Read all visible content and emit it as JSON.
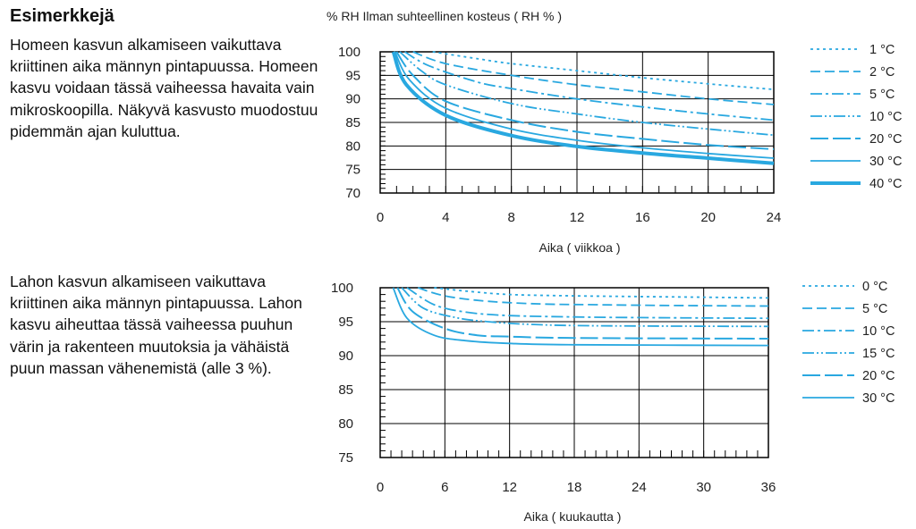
{
  "text": {
    "heading": "Esimerkkejä",
    "para1": "Homeen kasvun alkamiseen vaikuttava kriittinen aika männyn pintapuussa. Homeen kasvu voidaan tässä vaiheessa havaita vain mikroskoopilla. Näkyvä kasvusto muodostuu pidemmän ajan kuluttua.",
    "para2": "Lahon kasvun alkamiseen vaikuttava kriittinen aika männyn pintapuussa. Lahon kasvu aiheuttaa tässä vaiheessa puuhun värin ja rakenteen muutoksia ja vähäistä puun massan vähenemistä (alle 3 %)."
  },
  "chart_data": [
    {
      "type": "line",
      "title": "% RH  Ilman suhteellinen kosteus ( RH % )",
      "xlabel": "Aika ( viikkoa )",
      "ylabel": "% RH",
      "xlim": [
        0,
        24
      ],
      "ylim": [
        70,
        100
      ],
      "xticks": [
        0,
        4,
        8,
        12,
        16,
        20,
        24
      ],
      "yticks": [
        70,
        75,
        80,
        85,
        90,
        95,
        100
      ],
      "color": "#29a8e0",
      "series": [
        {
          "name": "1 °C",
          "style": "dot",
          "points": [
            [
              3.2,
              100
            ],
            [
              6,
              98.5
            ],
            [
              8,
              97.5
            ],
            [
              12,
              96
            ],
            [
              16,
              94.5
            ],
            [
              20,
              93.2
            ],
            [
              24,
              92
            ]
          ]
        },
        {
          "name": "2 °C",
          "style": "dash-short",
          "points": [
            [
              2.0,
              100
            ],
            [
              4,
              97.5
            ],
            [
              8,
              95
            ],
            [
              12,
              93
            ],
            [
              16,
              91.5
            ],
            [
              20,
              90
            ],
            [
              24,
              88.8
            ]
          ]
        },
        {
          "name": "5 °C",
          "style": "dash-dot",
          "points": [
            [
              1.5,
              100
            ],
            [
              3,
              97
            ],
            [
              6,
              93.5
            ],
            [
              8,
              92.2
            ],
            [
              12,
              90
            ],
            [
              16,
              88.3
            ],
            [
              20,
              86.8
            ],
            [
              24,
              85.5
            ]
          ]
        },
        {
          "name": "10 °C",
          "style": "dash-dot-dot",
          "points": [
            [
              1.2,
              100
            ],
            [
              2.5,
              96
            ],
            [
              4,
              93
            ],
            [
              8,
              89
            ],
            [
              12,
              86.8
            ],
            [
              16,
              85
            ],
            [
              20,
              83.6
            ],
            [
              24,
              82.3
            ]
          ]
        },
        {
          "name": "20 °C",
          "style": "dash-long",
          "points": [
            [
              1.0,
              100
            ],
            [
              2,
              95
            ],
            [
              4,
              89.5
            ],
            [
              8,
              85.5
            ],
            [
              12,
              83
            ],
            [
              16,
              81.5
            ],
            [
              20,
              80.2
            ],
            [
              24,
              79.3
            ]
          ]
        },
        {
          "name": "30 °C",
          "style": "solid",
          "points": [
            [
              0.9,
              100
            ],
            [
              1.8,
              94
            ],
            [
              4,
              88
            ],
            [
              8,
              83.6
            ],
            [
              12,
              81.2
            ],
            [
              16,
              79.6
            ],
            [
              20,
              78.4
            ],
            [
              24,
              77.4
            ]
          ]
        },
        {
          "name": "40 °C",
          "style": "solid-thick",
          "points": [
            [
              0.8,
              100
            ],
            [
              1.6,
              93
            ],
            [
              4,
              86.5
            ],
            [
              8,
              82.2
            ],
            [
              12,
              79.9
            ],
            [
              16,
              78.5
            ],
            [
              20,
              77.4
            ],
            [
              24,
              76.3
            ]
          ]
        }
      ]
    },
    {
      "type": "line",
      "xlabel": "Aika ( kuukautta )",
      "xlim": [
        0,
        36
      ],
      "ylim": [
        75,
        100
      ],
      "xticks": [
        0,
        6,
        12,
        18,
        24,
        30,
        36
      ],
      "yticks": [
        75,
        80,
        85,
        90,
        95,
        100
      ],
      "color": "#29a8e0",
      "series": [
        {
          "name": "0 °C",
          "style": "dot",
          "points": [
            [
              5,
              100
            ],
            [
              8,
              99.5
            ],
            [
              12,
              99
            ],
            [
              18,
              98.8
            ],
            [
              24,
              98.7
            ],
            [
              30,
              98.6
            ],
            [
              36,
              98.5
            ]
          ]
        },
        {
          "name": "5 °C",
          "style": "dash-short",
          "points": [
            [
              3.5,
              100
            ],
            [
              6,
              98.8
            ],
            [
              10,
              98
            ],
            [
              15,
              97.6
            ],
            [
              20,
              97.5
            ],
            [
              26,
              97.4
            ],
            [
              36,
              97.3
            ]
          ]
        },
        {
          "name": "10 °C",
          "style": "dash-dot",
          "points": [
            [
              2.5,
              100
            ],
            [
              5,
              97.5
            ],
            [
              8,
              96.4
            ],
            [
              12,
              95.9
            ],
            [
              18,
              95.7
            ],
            [
              24,
              95.6
            ],
            [
              36,
              95.5
            ]
          ]
        },
        {
          "name": "15 °C",
          "style": "dash-dot-dot",
          "points": [
            [
              2,
              100
            ],
            [
              4,
              97
            ],
            [
              7,
              95.6
            ],
            [
              10,
              95
            ],
            [
              14,
              94.6
            ],
            [
              20,
              94.4
            ],
            [
              36,
              94.3
            ]
          ]
        },
        {
          "name": "20 °C",
          "style": "dash-long",
          "points": [
            [
              1.6,
              100
            ],
            [
              3,
              96.5
            ],
            [
              6,
              94
            ],
            [
              9,
              93
            ],
            [
              12,
              92.8
            ],
            [
              18,
              92.6
            ],
            [
              36,
              92.5
            ]
          ]
        },
        {
          "name": "30 °C",
          "style": "solid",
          "points": [
            [
              1.2,
              100
            ],
            [
              2.5,
              95.5
            ],
            [
              5,
              93
            ],
            [
              8,
              92.2
            ],
            [
              12,
              91.8
            ],
            [
              18,
              91.6
            ],
            [
              36,
              91.5
            ]
          ]
        }
      ]
    }
  ]
}
